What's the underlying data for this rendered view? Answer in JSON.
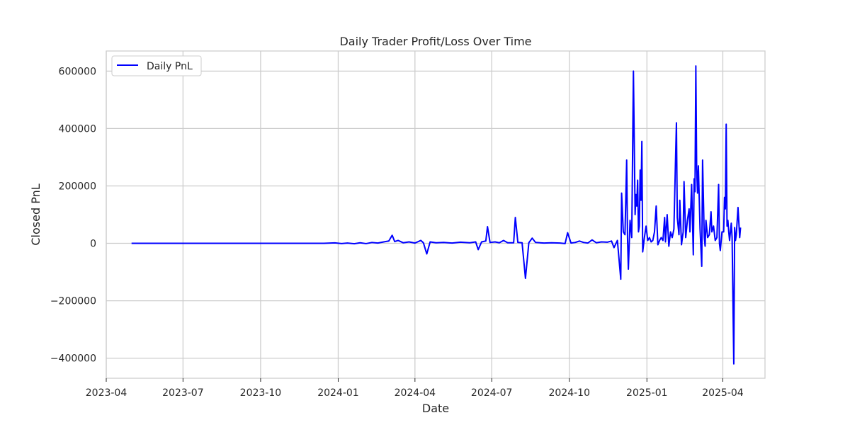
{
  "chart_data": {
    "type": "line",
    "title": "Daily Trader Profit/Loss Over Time",
    "xlabel": "Date",
    "ylabel": "Closed PnL",
    "xlim": [
      "2023-04-01",
      "2025-05-21"
    ],
    "ylim": [
      -470000,
      670000
    ],
    "x_ticks": [
      "2023-04-01",
      "2023-07-01",
      "2023-10-01",
      "2024-01-01",
      "2024-04-01",
      "2024-07-01",
      "2024-10-01",
      "2025-01-01",
      "2025-04-01"
    ],
    "x_tick_labels": [
      "2023-04",
      "2023-07",
      "2023-10",
      "2024-01",
      "2024-04",
      "2024-07",
      "2024-10",
      "2025-01",
      "2025-04"
    ],
    "y_ticks": [
      -400000,
      -200000,
      0,
      200000,
      400000,
      600000
    ],
    "y_tick_labels": [
      "−400000",
      "−200000",
      "0",
      "200000",
      "400000",
      "600000"
    ],
    "grid": true,
    "legend": {
      "position": "upper-left",
      "entries": [
        "Daily PnL"
      ]
    },
    "series": [
      {
        "name": "Daily PnL",
        "color": "#0000ff",
        "points": [
          [
            "2023-05-01",
            0
          ],
          [
            "2023-12-15",
            0
          ],
          [
            "2023-12-28",
            1500
          ],
          [
            "2024-01-05",
            -1000
          ],
          [
            "2024-01-12",
            1000
          ],
          [
            "2024-01-20",
            -1500
          ],
          [
            "2024-01-27",
            2000
          ],
          [
            "2024-02-03",
            -1000
          ],
          [
            "2024-02-10",
            3000
          ],
          [
            "2024-02-17",
            1000
          ],
          [
            "2024-02-24",
            5000
          ],
          [
            "2024-03-01",
            8000
          ],
          [
            "2024-03-05",
            28000
          ],
          [
            "2024-03-08",
            6000
          ],
          [
            "2024-03-12",
            10000
          ],
          [
            "2024-03-18",
            2000
          ],
          [
            "2024-03-25",
            5000
          ],
          [
            "2024-04-01",
            1000
          ],
          [
            "2024-04-08",
            10000
          ],
          [
            "2024-04-11",
            2000
          ],
          [
            "2024-04-15",
            -37000
          ],
          [
            "2024-04-19",
            5000
          ],
          [
            "2024-04-26",
            2000
          ],
          [
            "2024-05-05",
            3000
          ],
          [
            "2024-05-15",
            1000
          ],
          [
            "2024-05-25",
            4000
          ],
          [
            "2024-06-05",
            2000
          ],
          [
            "2024-06-12",
            5000
          ],
          [
            "2024-06-15",
            -22000
          ],
          [
            "2024-06-19",
            5000
          ],
          [
            "2024-06-24",
            8000
          ],
          [
            "2024-06-26",
            58000
          ],
          [
            "2024-06-29",
            3000
          ],
          [
            "2024-07-05",
            5000
          ],
          [
            "2024-07-10",
            2000
          ],
          [
            "2024-07-15",
            10000
          ],
          [
            "2024-07-20",
            2000
          ],
          [
            "2024-07-27",
            2000
          ],
          [
            "2024-07-29",
            90000
          ],
          [
            "2024-08-01",
            3000
          ],
          [
            "2024-08-06",
            2000
          ],
          [
            "2024-08-10",
            -122000
          ],
          [
            "2024-08-14",
            2000
          ],
          [
            "2024-08-18",
            18000
          ],
          [
            "2024-08-22",
            3000
          ],
          [
            "2024-09-01",
            1000
          ],
          [
            "2024-09-10",
            2000
          ],
          [
            "2024-09-20",
            1000
          ],
          [
            "2024-09-26",
            -1000
          ],
          [
            "2024-09-29",
            37000
          ],
          [
            "2024-10-03",
            1000
          ],
          [
            "2024-10-08",
            3000
          ],
          [
            "2024-10-13",
            8000
          ],
          [
            "2024-10-18",
            3000
          ],
          [
            "2024-10-23",
            1000
          ],
          [
            "2024-10-28",
            12000
          ],
          [
            "2024-11-02",
            2000
          ],
          [
            "2024-11-08",
            5000
          ],
          [
            "2024-11-15",
            4000
          ],
          [
            "2024-11-20",
            8000
          ],
          [
            "2024-11-23",
            -15000
          ],
          [
            "2024-11-27",
            10000
          ],
          [
            "2024-12-01",
            -125000
          ],
          [
            "2024-12-02",
            175000
          ],
          [
            "2024-12-04",
            40000
          ],
          [
            "2024-12-06",
            30000
          ],
          [
            "2024-12-08",
            290000
          ],
          [
            "2024-12-09",
            20000
          ],
          [
            "2024-12-10",
            -90000
          ],
          [
            "2024-12-12",
            80000
          ],
          [
            "2024-12-14",
            20000
          ],
          [
            "2024-12-16",
            600000
          ],
          [
            "2024-12-18",
            100000
          ],
          [
            "2024-12-19",
            170000
          ],
          [
            "2024-12-20",
            130000
          ],
          [
            "2024-12-21",
            220000
          ],
          [
            "2024-12-22",
            40000
          ],
          [
            "2024-12-23",
            60000
          ],
          [
            "2024-12-24",
            255000
          ],
          [
            "2024-12-25",
            150000
          ],
          [
            "2024-12-26",
            355000
          ],
          [
            "2024-12-27",
            -30000
          ],
          [
            "2024-12-29",
            20000
          ],
          [
            "2024-12-31",
            60000
          ],
          [
            "2025-01-02",
            10000
          ],
          [
            "2025-01-04",
            20000
          ],
          [
            "2025-01-06",
            5000
          ],
          [
            "2025-01-08",
            10000
          ],
          [
            "2025-01-10",
            40000
          ],
          [
            "2025-01-12",
            130000
          ],
          [
            "2025-01-14",
            -5000
          ],
          [
            "2025-01-16",
            10000
          ],
          [
            "2025-01-18",
            20000
          ],
          [
            "2025-01-20",
            10000
          ],
          [
            "2025-01-22",
            90000
          ],
          [
            "2025-01-23",
            5000
          ],
          [
            "2025-01-25",
            100000
          ],
          [
            "2025-01-27",
            -10000
          ],
          [
            "2025-01-29",
            40000
          ],
          [
            "2025-01-31",
            20000
          ],
          [
            "2025-02-02",
            50000
          ],
          [
            "2025-02-04",
            300000
          ],
          [
            "2025-02-05",
            420000
          ],
          [
            "2025-02-06",
            90000
          ],
          [
            "2025-02-08",
            30000
          ],
          [
            "2025-02-09",
            150000
          ],
          [
            "2025-02-11",
            -5000
          ],
          [
            "2025-02-13",
            40000
          ],
          [
            "2025-02-14",
            215000
          ],
          [
            "2025-02-16",
            20000
          ],
          [
            "2025-02-18",
            80000
          ],
          [
            "2025-02-20",
            120000
          ],
          [
            "2025-02-21",
            40000
          ],
          [
            "2025-02-23",
            205000
          ],
          [
            "2025-02-25",
            -40000
          ],
          [
            "2025-02-26",
            225000
          ],
          [
            "2025-02-27",
            180000
          ],
          [
            "2025-02-28",
            618000
          ],
          [
            "2025-03-01",
            260000
          ],
          [
            "2025-03-02",
            175000
          ],
          [
            "2025-03-03",
            270000
          ],
          [
            "2025-03-05",
            50000
          ],
          [
            "2025-03-07",
            -80000
          ],
          [
            "2025-03-08",
            290000
          ],
          [
            "2025-03-10",
            20000
          ],
          [
            "2025-03-11",
            -10000
          ],
          [
            "2025-03-12",
            80000
          ],
          [
            "2025-03-14",
            20000
          ],
          [
            "2025-03-16",
            30000
          ],
          [
            "2025-03-18",
            110000
          ],
          [
            "2025-03-19",
            40000
          ],
          [
            "2025-03-21",
            60000
          ],
          [
            "2025-03-23",
            10000
          ],
          [
            "2025-03-25",
            20000
          ],
          [
            "2025-03-27",
            205000
          ],
          [
            "2025-03-28",
            0
          ],
          [
            "2025-03-29",
            -25000
          ],
          [
            "2025-03-31",
            40000
          ],
          [
            "2025-04-02",
            40000
          ],
          [
            "2025-04-03",
            160000
          ],
          [
            "2025-04-04",
            120000
          ],
          [
            "2025-04-05",
            415000
          ],
          [
            "2025-04-06",
            60000
          ],
          [
            "2025-04-07",
            80000
          ],
          [
            "2025-04-08",
            40000
          ],
          [
            "2025-04-09",
            10000
          ],
          [
            "2025-04-11",
            70000
          ],
          [
            "2025-04-12",
            20000
          ],
          [
            "2025-04-14",
            -420000
          ],
          [
            "2025-04-15",
            55000
          ],
          [
            "2025-04-16",
            10000
          ],
          [
            "2025-04-17",
            30000
          ],
          [
            "2025-04-19",
            125000
          ],
          [
            "2025-04-21",
            20000
          ],
          [
            "2025-04-22",
            55000
          ]
        ]
      }
    ]
  }
}
